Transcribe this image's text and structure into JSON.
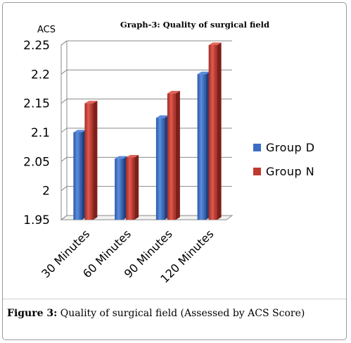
{
  "chart_data": {
    "type": "bar",
    "title": "Graph-3: Quality  of surgical field",
    "ylabel": "ACS",
    "xlabel": "",
    "ylim": [
      1.95,
      2.25
    ],
    "yticks": [
      "1.95",
      "2",
      "2.05",
      "2.1",
      "2.15",
      "2.2",
      "2.25"
    ],
    "categories": [
      "30 Minutes",
      "60 Minutes",
      "90 Minutes",
      "120 Minutes"
    ],
    "series": [
      {
        "name": "Group D",
        "color": "#3a6fc4",
        "values": [
          2.1,
          2.055,
          2.125,
          2.2
        ]
      },
      {
        "name": "Group N",
        "color": "#c0392f",
        "values": [
          2.15,
          2.057,
          2.167,
          2.25
        ]
      }
    ],
    "grid": true,
    "legend": "right"
  },
  "caption": {
    "label": "Figure 3:",
    "text": " Quality of surgical field (Assessed by ACS Score)"
  }
}
